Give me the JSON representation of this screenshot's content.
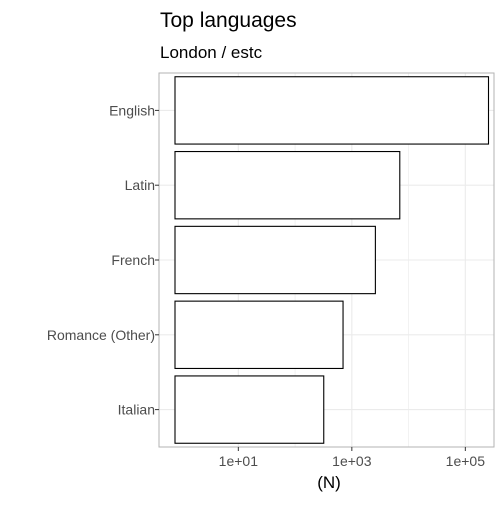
{
  "chart_data": {
    "type": "bar",
    "orientation": "horizontal",
    "title": "Top languages",
    "subtitle": "London / estc",
    "xlabel": "(N)",
    "ylabel": "",
    "x_scale": "log10",
    "xlim": [
      0.4,
      320000
    ],
    "x_ticks": [
      10,
      1000,
      100000
    ],
    "x_tick_labels": [
      "1e+01",
      "1e+03",
      "1e+05"
    ],
    "grid": true,
    "legend": "none",
    "categories": [
      "English",
      "Latin",
      "French",
      "Romance (Other)",
      "Italian"
    ],
    "values": [
      256000,
      7000,
      2600,
      700,
      320
    ],
    "bar_fill": "#ffffff",
    "bar_stroke": "#000000",
    "panel_border": "#b3b3b3",
    "gridline_color": "#ebebeb",
    "axis_text_color": "#4d4d4d"
  }
}
